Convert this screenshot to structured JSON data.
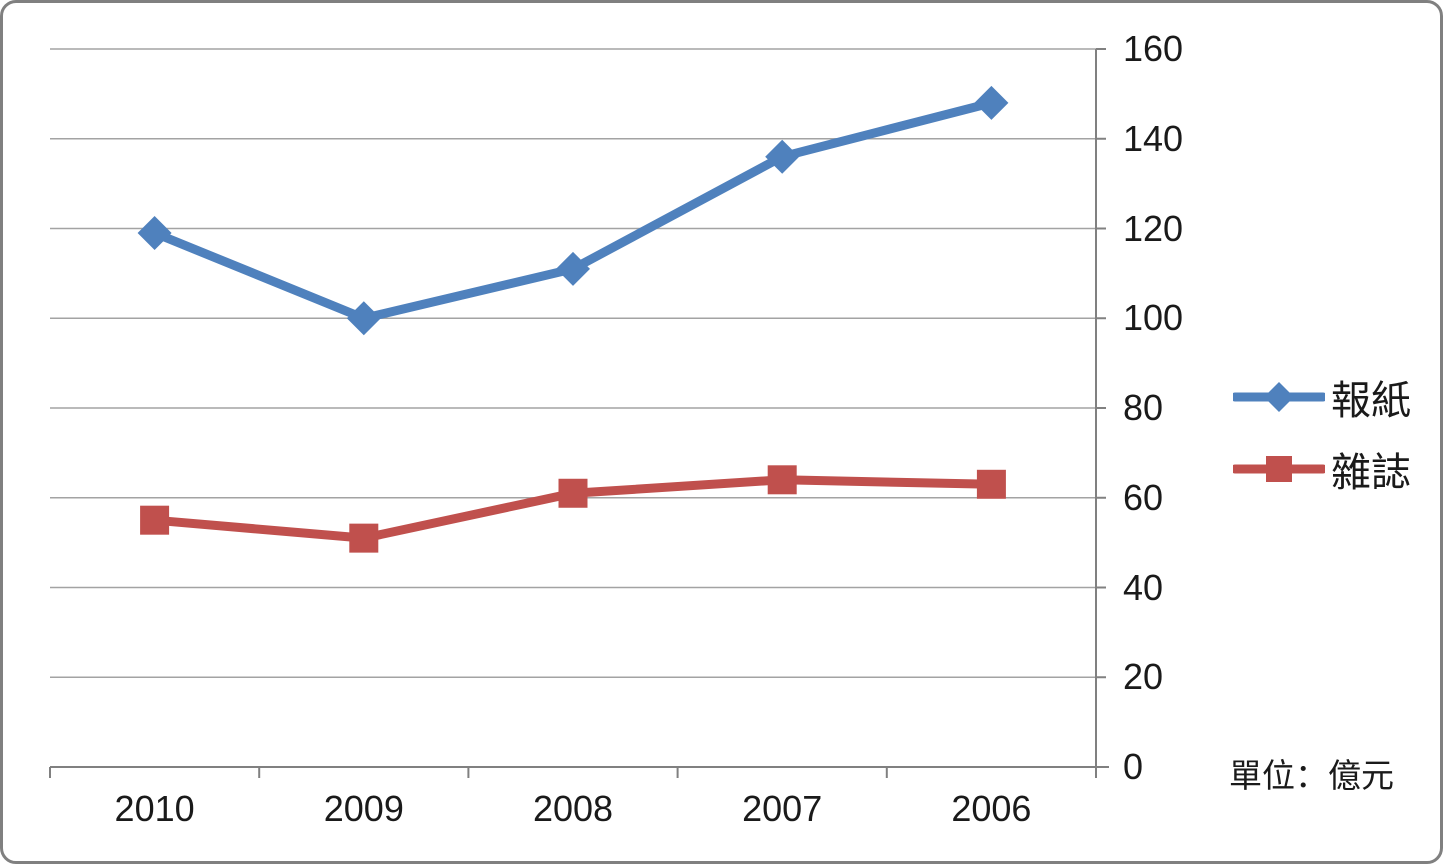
{
  "chart_data": {
    "type": "line",
    "categories": [
      "2010",
      "2009",
      "2008",
      "2007",
      "2006"
    ],
    "series": [
      {
        "name": "報紙",
        "values": [
          119,
          100,
          111,
          136,
          148
        ],
        "color": "#4F81BD",
        "marker": "diamond"
      },
      {
        "name": "雜誌",
        "values": [
          55,
          51,
          61,
          64,
          63
        ],
        "color": "#C0504D",
        "marker": "square"
      }
    ],
    "ylim": [
      0,
      160
    ],
    "y_ticks": [
      0,
      20,
      40,
      60,
      80,
      100,
      120,
      140,
      160
    ],
    "y_axis_side": "right",
    "grid": true,
    "legend_position": "right",
    "unit_label": "單位：億元",
    "colors": {
      "gridline": "#a3a3a3",
      "axis": "#808080",
      "background": "#ffffff",
      "border": "#808080",
      "text": "#1a1a1a"
    }
  }
}
